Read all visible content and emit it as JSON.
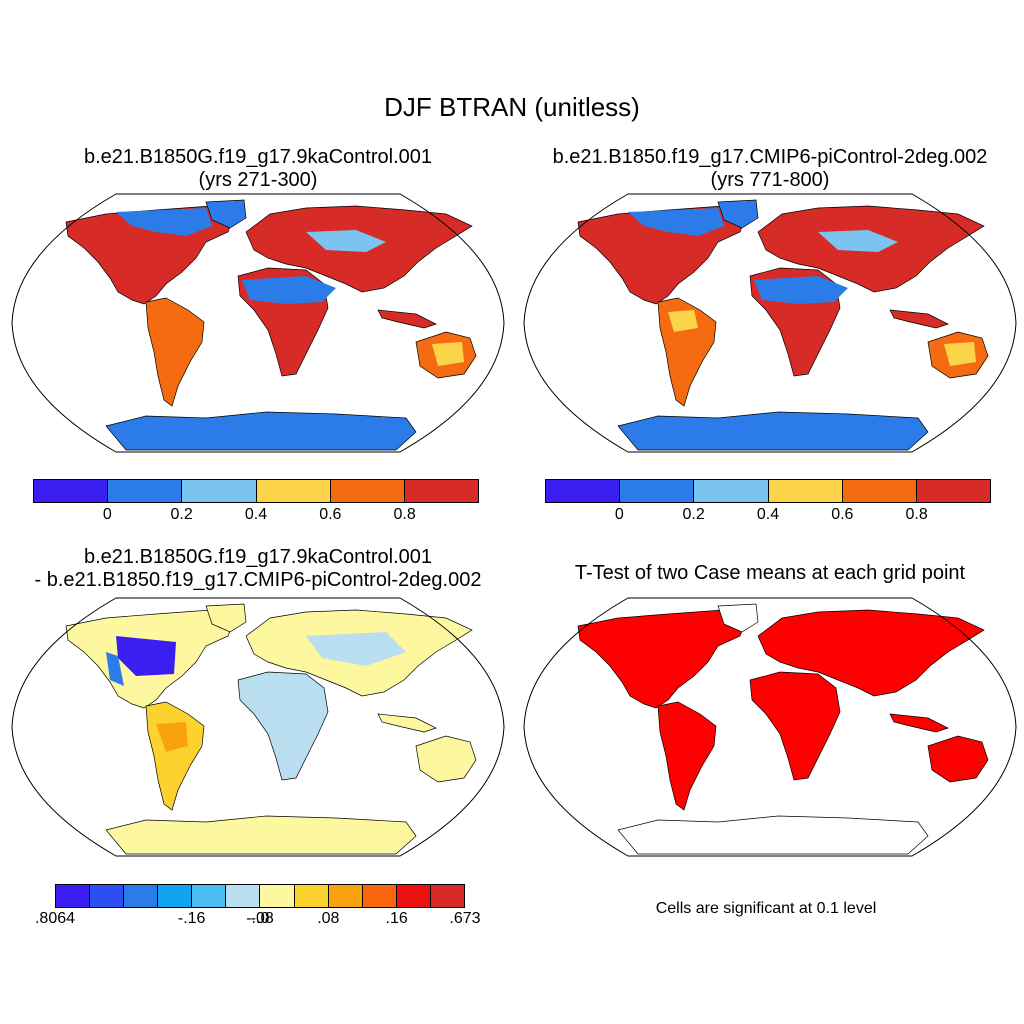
{
  "title": "DJF BTRAN (unitless)",
  "panels": {
    "case1": {
      "title_line1": "b.e21.B1850G.f19_g17.9kaControl.001",
      "title_line2": "(yrs 271-300)"
    },
    "case2": {
      "title_line1": "b.e21.B1850.f19_g17.CMIP6-piControl-2deg.002",
      "title_line2": "(yrs 771-800)"
    },
    "diff": {
      "title_line1": "b.e21.B1850G.f19_g17.9kaControl.001",
      "title_line2": "- b.e21.B1850.f19_g17.CMIP6-piControl-2deg.002"
    },
    "ttest": {
      "title": "T-Test of two Case means at each grid point",
      "note": "Cells are significant at 0.1 level"
    }
  },
  "colorbars": {
    "main": {
      "colors": [
        "#3b1ef2",
        "#2b7be8",
        "#7cc4f0",
        "#fbd44a",
        "#f46b12",
        "#d72b27"
      ],
      "labels": [
        "0",
        "0.2",
        "0.4",
        "0.6",
        "0.8"
      ]
    },
    "diff": {
      "colors": [
        "#3b1ef2",
        "#2a4ef0",
        "#2b7be8",
        "#12a2f2",
        "#4cbdf0",
        "#b8def0",
        "#fdf7a0",
        "#fbd22e",
        "#f9a20f",
        "#f7660d",
        "#ee1111",
        "#d72b27"
      ],
      "labels": [
        ".8064",
        "-.16",
        "-.08",
        "-.0",
        ".08",
        ".16",
        ".673"
      ]
    }
  },
  "map_colors": {
    "land_red": "#d72b27",
    "land_orange": "#f46b12",
    "land_yellow": "#fbd44a",
    "land_blue": "#2b7be8",
    "land_lightblue": "#7cc4f0",
    "diff_yellow": "#fdf7a0",
    "diff_lightblue": "#b8def0",
    "diff_purple": "#3b1ef2",
    "sig_red": "#ff0000"
  }
}
